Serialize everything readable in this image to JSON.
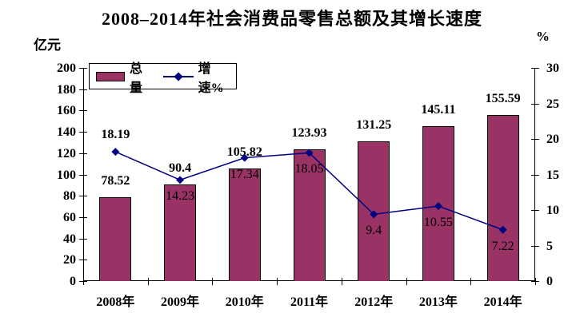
{
  "title": "2008–2014年社会消费品零售总额及其增长速度",
  "left_unit": "亿元",
  "right_unit": "%",
  "legend": {
    "bar_label": "总量",
    "line_label": "增速%"
  },
  "colors": {
    "background": "#FFFFFF",
    "bar_fill": "#993366",
    "bar_border": "#000000",
    "line": "#000080",
    "marker": "#000080",
    "text": "#000000"
  },
  "chart_data": {
    "type": "bar+line",
    "title": "2008–2014年社会消费品零售总额及其增长速度",
    "categories": [
      "2008年",
      "2009年",
      "2010年",
      "2011年",
      "2012年",
      "2013年",
      "2014年"
    ],
    "series": [
      {
        "name": "总量",
        "type": "bar",
        "axis": "left",
        "unit": "亿元",
        "values": [
          78.52,
          90.4,
          105.82,
          123.93,
          131.25,
          145.11,
          155.59
        ]
      },
      {
        "name": "增速%",
        "type": "line",
        "axis": "right",
        "unit": "%",
        "values": [
          18.19,
          14.23,
          17.34,
          18.05,
          9.4,
          10.55,
          7.22
        ],
        "label_side": [
          "above",
          "below",
          "below",
          "below",
          "below",
          "below",
          "below"
        ]
      }
    ],
    "left_axis": {
      "title": "亿元",
      "min": 0,
      "max": 200,
      "step": 20
    },
    "right_axis": {
      "title": "%",
      "min": 0,
      "max": 30,
      "step": 5
    },
    "grid": false,
    "legend_position": "top-left-inside",
    "data_labels": true
  }
}
